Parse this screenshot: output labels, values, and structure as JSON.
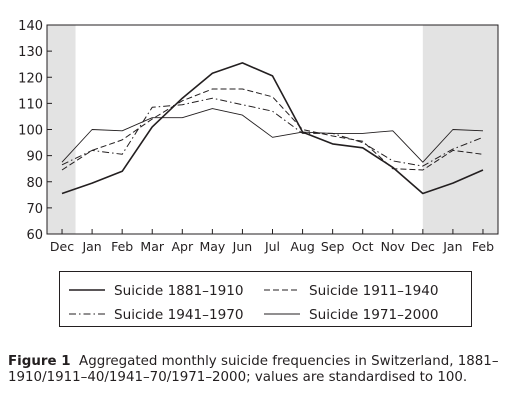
{
  "chart_data": {
    "type": "line",
    "categories": [
      "Dec",
      "Jan",
      "Feb",
      "Mar",
      "Apr",
      "May",
      "Jun",
      "Jul",
      "Aug",
      "Sep",
      "Oct",
      "Nov",
      "Dec",
      "Jan",
      "Feb"
    ],
    "ylim": [
      60,
      140
    ],
    "yticks": [
      60,
      70,
      80,
      90,
      100,
      110,
      120,
      130,
      140
    ],
    "grid": false,
    "shaded_categories": [
      "Dec",
      "Feb"
    ],
    "legend_placement": "bottom",
    "series": [
      {
        "name": "Suicide 1881–1910",
        "style": "solid-thick",
        "values": [
          75.5,
          79.5,
          84,
          101,
          112,
          121.5,
          125.5,
          120.5,
          99,
          94.5,
          93,
          85.5,
          75.5,
          79.5,
          84.5
        ]
      },
      {
        "name": "Suicide 1911–1940",
        "style": "dashed",
        "values": [
          84.5,
          92,
          96,
          104,
          111,
          115.5,
          115.5,
          112.5,
          100,
          97.5,
          95.5,
          85,
          84.5,
          92,
          90.5
        ]
      },
      {
        "name": "Suicide 1941–1970",
        "style": "dashdot",
        "values": [
          86.5,
          92,
          90.5,
          108.5,
          109.5,
          112,
          109.5,
          107,
          98.5,
          98.5,
          95,
          88,
          86,
          92.5,
          97
        ]
      },
      {
        "name": "Suicide 1971–2000",
        "style": "solid-thin",
        "values": [
          87.5,
          100,
          99.5,
          104.5,
          104.5,
          108,
          105.5,
          97,
          99,
          98.5,
          98.5,
          99.5,
          87.5,
          100,
          99.5
        ]
      }
    ]
  },
  "caption": {
    "label": "Figure 1",
    "text": "Aggregated monthly suicide frequencies in Switzerland, 1881–1910/1911–40/1941–70/1971–2000; values are standardised to 100."
  }
}
